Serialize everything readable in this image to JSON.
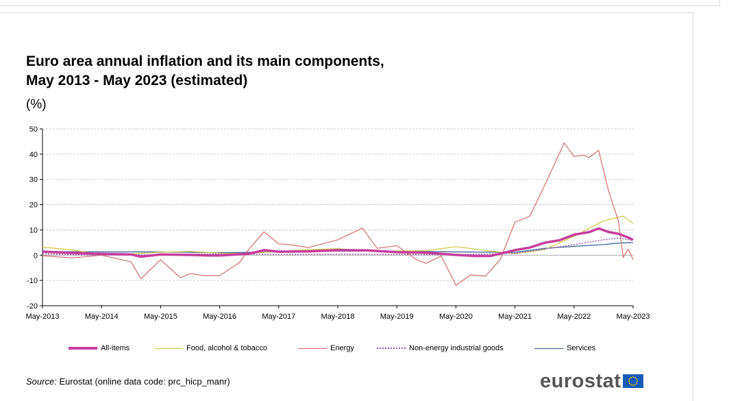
{
  "title_line1": "Euro area annual inflation and its main components,",
  "title_line2": "May 2013 - May 2023 (estimated)",
  "unit": "(%)",
  "source_label": "Source:",
  "source_text": "Eurostat (online data code: prc_hicp_manr)",
  "logo_text": "eurostat",
  "chart_data": {
    "type": "line",
    "title": "Euro area annual inflation and its main components, May 2013 - May 2023 (estimated)",
    "ylabel": "(%)",
    "ylim": [
      -20,
      50
    ],
    "yticks": [
      -20,
      -10,
      0,
      10,
      20,
      30,
      40,
      50
    ],
    "xlim": [
      "2013-05",
      "2023-05"
    ],
    "xticks": [
      "May-2013",
      "May-2014",
      "May-2015",
      "May-2016",
      "May-2017",
      "May-2018",
      "May-2019",
      "May-2020",
      "May-2021",
      "May-2022",
      "May-2023"
    ],
    "grid": true,
    "legend_position": "bottom",
    "series": [
      {
        "name": "All-items",
        "color": "#c63c9b",
        "style": "thick",
        "x": [
          "2013-05",
          "2013-11",
          "2014-05",
          "2014-11",
          "2015-01",
          "2015-05",
          "2015-11",
          "2016-03",
          "2016-05",
          "2016-11",
          "2017-02",
          "2017-05",
          "2017-11",
          "2018-05",
          "2018-11",
          "2019-05",
          "2019-11",
          "2020-05",
          "2020-09",
          "2020-12",
          "2021-05",
          "2021-08",
          "2021-11",
          "2022-02",
          "2022-05",
          "2022-08",
          "2022-10",
          "2022-12",
          "2023-02",
          "2023-04",
          "2023-05"
        ],
        "values": [
          1.4,
          0.9,
          0.5,
          0.3,
          -0.6,
          0.3,
          0.1,
          -0.1,
          -0.1,
          0.6,
          2.0,
          1.4,
          1.5,
          2.0,
          1.9,
          1.2,
          1.0,
          0.1,
          -0.3,
          -0.3,
          2.0,
          3.0,
          4.9,
          5.9,
          8.1,
          9.1,
          10.6,
          9.2,
          8.5,
          7.0,
          6.1
        ]
      },
      {
        "name": "Food, alcohol & tobacco",
        "color": "#cfc53f",
        "style": "thin",
        "x": [
          "2013-05",
          "2013-11",
          "2014-05",
          "2014-11",
          "2015-05",
          "2015-11",
          "2016-05",
          "2016-11",
          "2017-05",
          "2017-11",
          "2018-05",
          "2018-11",
          "2019-05",
          "2019-11",
          "2020-05",
          "2020-11",
          "2021-05",
          "2021-11",
          "2022-05",
          "2022-11",
          "2023-03",
          "2023-05"
        ],
        "values": [
          3.2,
          2.1,
          0.1,
          0.5,
          1.2,
          1.5,
          0.8,
          0.7,
          1.5,
          2.2,
          2.6,
          1.7,
          1.6,
          1.8,
          3.4,
          1.9,
          0.6,
          2.2,
          7.5,
          13.6,
          15.5,
          12.5
        ]
      },
      {
        "name": "Energy",
        "color": "#d16d6a",
        "style": "thin",
        "x": [
          "2013-05",
          "2013-11",
          "2014-05",
          "2014-11",
          "2015-01",
          "2015-05",
          "2015-09",
          "2015-11",
          "2016-02",
          "2016-05",
          "2016-09",
          "2016-11",
          "2017-02",
          "2017-05",
          "2017-08",
          "2017-11",
          "2018-05",
          "2018-10",
          "2019-01",
          "2019-05",
          "2019-09",
          "2019-11",
          "2020-02",
          "2020-05",
          "2020-08",
          "2020-11",
          "2021-02",
          "2021-05",
          "2021-08",
          "2021-11",
          "2022-03",
          "2022-05",
          "2022-07",
          "2022-08",
          "2022-10",
          "2022-12",
          "2023-02",
          "2023-03",
          "2023-04",
          "2023-05"
        ],
        "values": [
          -0.2,
          -1.1,
          0.0,
          -2.6,
          -9.3,
          -1.8,
          -8.9,
          -7.3,
          -8.1,
          -8.1,
          -3.0,
          2.5,
          9.3,
          4.5,
          4.0,
          3.0,
          6.1,
          10.7,
          2.7,
          3.8,
          -1.8,
          -3.2,
          -0.3,
          -11.9,
          -7.8,
          -8.3,
          -1.7,
          13.1,
          15.4,
          27.5,
          44.4,
          39.1,
          39.6,
          38.6,
          41.5,
          25.5,
          13.7,
          -0.9,
          2.4,
          -1.8
        ]
      },
      {
        "name": "Non-energy industrial goods",
        "color": "#9a4fb0",
        "style": "dotted",
        "x": [
          "2013-05",
          "2014-05",
          "2015-05",
          "2016-05",
          "2017-05",
          "2018-05",
          "2019-05",
          "2020-05",
          "2021-05",
          "2021-11",
          "2022-05",
          "2022-11",
          "2023-02",
          "2023-05"
        ],
        "values": [
          0.5,
          0.0,
          0.3,
          0.5,
          0.3,
          0.4,
          0.3,
          0.2,
          0.7,
          2.4,
          4.2,
          6.1,
          6.8,
          5.8
        ]
      },
      {
        "name": "Services",
        "color": "#2e5b8e",
        "style": "thin",
        "x": [
          "2013-05",
          "2014-05",
          "2015-05",
          "2016-05",
          "2017-05",
          "2018-05",
          "2019-05",
          "2020-05",
          "2021-05",
          "2021-11",
          "2022-05",
          "2022-11",
          "2023-02",
          "2023-05"
        ],
        "values": [
          1.5,
          1.3,
          1.3,
          1.0,
          1.3,
          1.6,
          1.6,
          1.3,
          1.1,
          2.7,
          3.5,
          4.2,
          4.8,
          5.0
        ]
      }
    ]
  }
}
